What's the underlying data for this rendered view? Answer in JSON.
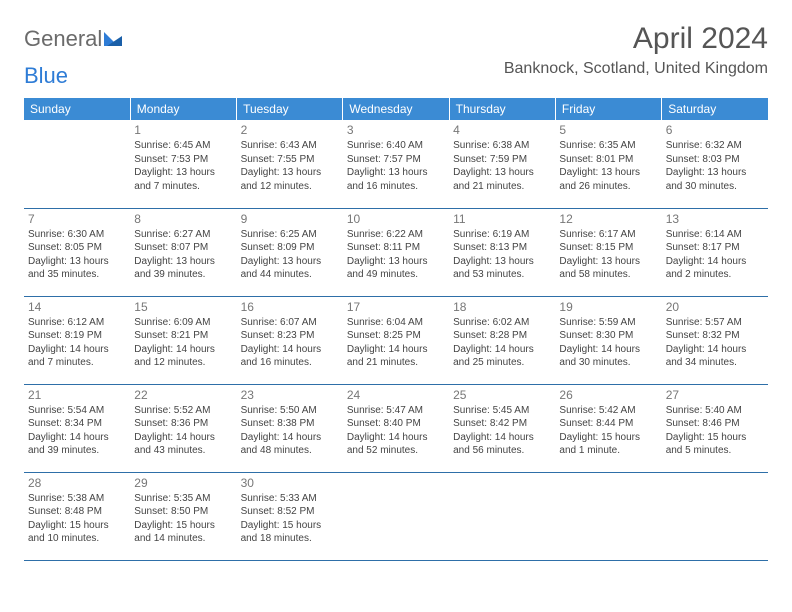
{
  "logo": {
    "text1": "General",
    "text2": "Blue"
  },
  "title": "April 2024",
  "location": "Banknock, Scotland, United Kingdom",
  "colors": {
    "header_bg": "#3b8bd4",
    "header_text": "#ffffff",
    "row_border": "#2e6fa8",
    "logo_gray": "#6b6b6b",
    "logo_blue": "#2e7cd6",
    "body_text": "#444444",
    "title_text": "#555555"
  },
  "weekdays": [
    "Sunday",
    "Monday",
    "Tuesday",
    "Wednesday",
    "Thursday",
    "Friday",
    "Saturday"
  ],
  "weeks": [
    [
      null,
      {
        "d": "1",
        "sr": "6:45 AM",
        "ss": "7:53 PM",
        "dl": "13 hours and 7 minutes."
      },
      {
        "d": "2",
        "sr": "6:43 AM",
        "ss": "7:55 PM",
        "dl": "13 hours and 12 minutes."
      },
      {
        "d": "3",
        "sr": "6:40 AM",
        "ss": "7:57 PM",
        "dl": "13 hours and 16 minutes."
      },
      {
        "d": "4",
        "sr": "6:38 AM",
        "ss": "7:59 PM",
        "dl": "13 hours and 21 minutes."
      },
      {
        "d": "5",
        "sr": "6:35 AM",
        "ss": "8:01 PM",
        "dl": "13 hours and 26 minutes."
      },
      {
        "d": "6",
        "sr": "6:32 AM",
        "ss": "8:03 PM",
        "dl": "13 hours and 30 minutes."
      }
    ],
    [
      {
        "d": "7",
        "sr": "6:30 AM",
        "ss": "8:05 PM",
        "dl": "13 hours and 35 minutes."
      },
      {
        "d": "8",
        "sr": "6:27 AM",
        "ss": "8:07 PM",
        "dl": "13 hours and 39 minutes."
      },
      {
        "d": "9",
        "sr": "6:25 AM",
        "ss": "8:09 PM",
        "dl": "13 hours and 44 minutes."
      },
      {
        "d": "10",
        "sr": "6:22 AM",
        "ss": "8:11 PM",
        "dl": "13 hours and 49 minutes."
      },
      {
        "d": "11",
        "sr": "6:19 AM",
        "ss": "8:13 PM",
        "dl": "13 hours and 53 minutes."
      },
      {
        "d": "12",
        "sr": "6:17 AM",
        "ss": "8:15 PM",
        "dl": "13 hours and 58 minutes."
      },
      {
        "d": "13",
        "sr": "6:14 AM",
        "ss": "8:17 PM",
        "dl": "14 hours and 2 minutes."
      }
    ],
    [
      {
        "d": "14",
        "sr": "6:12 AM",
        "ss": "8:19 PM",
        "dl": "14 hours and 7 minutes."
      },
      {
        "d": "15",
        "sr": "6:09 AM",
        "ss": "8:21 PM",
        "dl": "14 hours and 12 minutes."
      },
      {
        "d": "16",
        "sr": "6:07 AM",
        "ss": "8:23 PM",
        "dl": "14 hours and 16 minutes."
      },
      {
        "d": "17",
        "sr": "6:04 AM",
        "ss": "8:25 PM",
        "dl": "14 hours and 21 minutes."
      },
      {
        "d": "18",
        "sr": "6:02 AM",
        "ss": "8:28 PM",
        "dl": "14 hours and 25 minutes."
      },
      {
        "d": "19",
        "sr": "5:59 AM",
        "ss": "8:30 PM",
        "dl": "14 hours and 30 minutes."
      },
      {
        "d": "20",
        "sr": "5:57 AM",
        "ss": "8:32 PM",
        "dl": "14 hours and 34 minutes."
      }
    ],
    [
      {
        "d": "21",
        "sr": "5:54 AM",
        "ss": "8:34 PM",
        "dl": "14 hours and 39 minutes."
      },
      {
        "d": "22",
        "sr": "5:52 AM",
        "ss": "8:36 PM",
        "dl": "14 hours and 43 minutes."
      },
      {
        "d": "23",
        "sr": "5:50 AM",
        "ss": "8:38 PM",
        "dl": "14 hours and 48 minutes."
      },
      {
        "d": "24",
        "sr": "5:47 AM",
        "ss": "8:40 PM",
        "dl": "14 hours and 52 minutes."
      },
      {
        "d": "25",
        "sr": "5:45 AM",
        "ss": "8:42 PM",
        "dl": "14 hours and 56 minutes."
      },
      {
        "d": "26",
        "sr": "5:42 AM",
        "ss": "8:44 PM",
        "dl": "15 hours and 1 minute."
      },
      {
        "d": "27",
        "sr": "5:40 AM",
        "ss": "8:46 PM",
        "dl": "15 hours and 5 minutes."
      }
    ],
    [
      {
        "d": "28",
        "sr": "5:38 AM",
        "ss": "8:48 PM",
        "dl": "15 hours and 10 minutes."
      },
      {
        "d": "29",
        "sr": "5:35 AM",
        "ss": "8:50 PM",
        "dl": "15 hours and 14 minutes."
      },
      {
        "d": "30",
        "sr": "5:33 AM",
        "ss": "8:52 PM",
        "dl": "15 hours and 18 minutes."
      },
      null,
      null,
      null,
      null
    ]
  ],
  "labels": {
    "sunrise_prefix": "Sunrise: ",
    "sunset_prefix": "Sunset: ",
    "daylight_prefix": "Daylight: "
  }
}
